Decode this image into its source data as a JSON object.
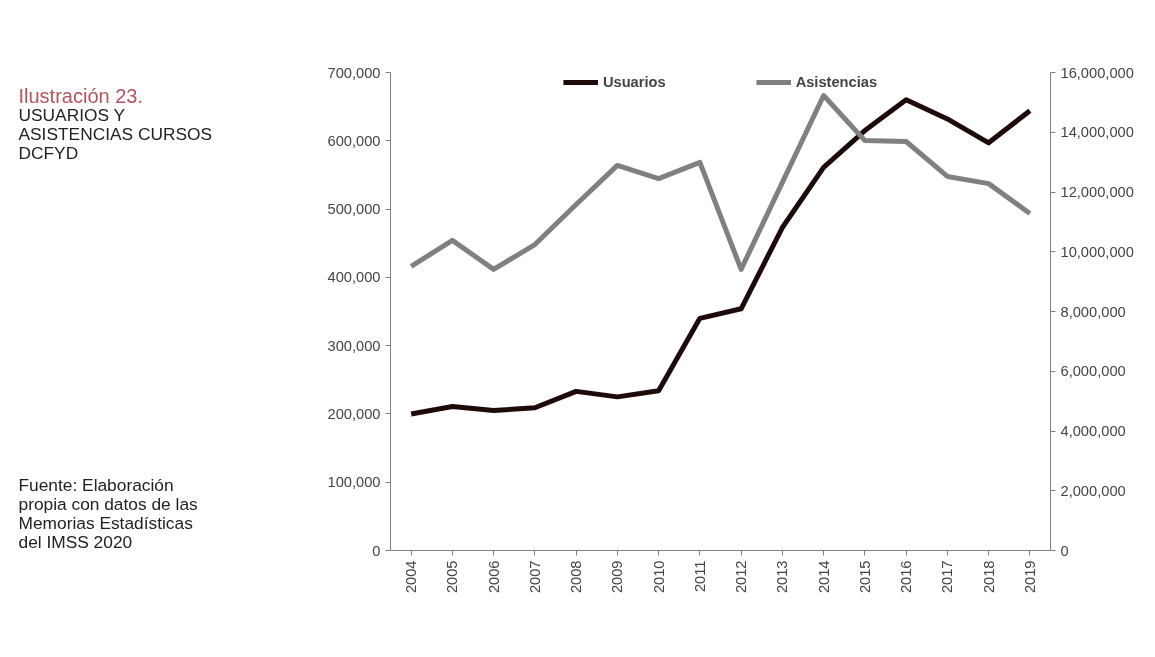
{
  "chart_data": {
    "type": "line",
    "title": "Ilustración 23.",
    "subtitle": "USUARIOS Y ASISTENCIAS CURSOS DCFYD",
    "categories": [
      "2004",
      "2005",
      "2006",
      "2007",
      "2008",
      "2009",
      "2010",
      "2011",
      "2012",
      "2013",
      "2014",
      "2015",
      "2016",
      "2017",
      "2018",
      "2019"
    ],
    "series": [
      {
        "name": "Usuarios",
        "color": "#1f0a0a",
        "values": [
          200000,
          211000,
          205000,
          209000,
          233000,
          225000,
          234000,
          340000,
          354000,
          473000,
          561000,
          615000,
          660000,
          632000,
          597000,
          644000
        ]
      },
      {
        "name": "Asistencias",
        "color": "#808080",
        "axis": "y2",
        "values": [
          9510000,
          10380000,
          9410000,
          10240000,
          11580000,
          12890000,
          12450000,
          12990000,
          9410000,
          12320000,
          15230000,
          13720000,
          13690000,
          12520000,
          12280000,
          11280000
        ]
      }
    ],
    "ylim": [
      0,
      700000
    ],
    "yticks": [
      {
        "value": 0,
        "label": "0"
      },
      {
        "value": 100000,
        "label": "100,000"
      },
      {
        "value": 200000,
        "label": "200,000"
      },
      {
        "value": 300000,
        "label": "300,000"
      },
      {
        "value": 400000,
        "label": "400,000"
      },
      {
        "value": 500000,
        "label": "500,000"
      },
      {
        "value": 600000,
        "label": "600,000"
      },
      {
        "value": 700000,
        "label": "700,000"
      }
    ],
    "y2lim": [
      0,
      16000000
    ],
    "y2ticks": [
      {
        "value": 0,
        "label": "0"
      },
      {
        "value": 2000000,
        "label": "2,000,000"
      },
      {
        "value": 4000000,
        "label": "4,000,000"
      },
      {
        "value": 6000000,
        "label": "6,000,000"
      },
      {
        "value": 8000000,
        "label": "8,000,000"
      },
      {
        "value": 10000000,
        "label": "10,000,000"
      },
      {
        "value": 12000000,
        "label": "12,000,000"
      },
      {
        "value": 14000000,
        "label": "14,000,000"
      },
      {
        "value": 16000000,
        "label": "16,000,000"
      }
    ],
    "annotations": [
      "Fuente: Elaboración propia con datos de las Memorias Estadísticas del IMSS 2020"
    ],
    "legend": "top",
    "grid": false,
    "marker": "none",
    "line_style": "solid"
  }
}
